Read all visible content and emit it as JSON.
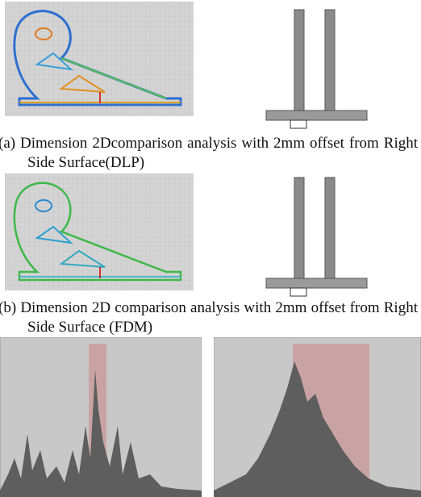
{
  "figure": {
    "panels": [
      {
        "caption": "(a) Dimension 2Dcomparison analysis with 2mm offset from Right Side Surface(DLP)"
      },
      {
        "caption": "(b) Dimension 2D comparison analysis with 2mm offset from Right Side Surface (FDM)"
      }
    ]
  }
}
